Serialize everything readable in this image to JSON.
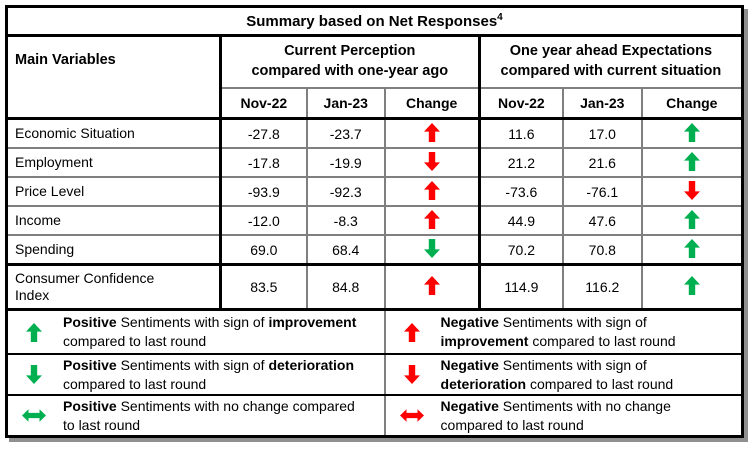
{
  "title": {
    "text": "Summary based on Net Responses",
    "superscript": "4"
  },
  "headers": {
    "main_variables": "Main Variables",
    "group1": {
      "line1": "Current Perception",
      "line2": "compared with one-year ago"
    },
    "group2": {
      "line1": "One year ahead Expectations",
      "line2": "compared with current situation"
    },
    "sub": [
      "Nov-22",
      "Jan-23",
      "Change",
      "Nov-22",
      "Jan-23",
      "Change"
    ]
  },
  "rows": [
    {
      "name": "Economic Situation",
      "cp_nov": "-27.8",
      "cp_jan": "-23.7",
      "cp_change": {
        "dir": "up",
        "color": "red"
      },
      "oy_nov": "11.6",
      "oy_jan": "17.0",
      "oy_change": {
        "dir": "up",
        "color": "green"
      }
    },
    {
      "name": "Employment",
      "cp_nov": "-17.8",
      "cp_jan": "-19.9",
      "cp_change": {
        "dir": "down",
        "color": "red"
      },
      "oy_nov": "21.2",
      "oy_jan": "21.6",
      "oy_change": {
        "dir": "up",
        "color": "green"
      }
    },
    {
      "name": "Price Level",
      "cp_nov": "-93.9",
      "cp_jan": "-92.3",
      "cp_change": {
        "dir": "up",
        "color": "red"
      },
      "oy_nov": "-73.6",
      "oy_jan": "-76.1",
      "oy_change": {
        "dir": "down",
        "color": "red"
      }
    },
    {
      "name": "Income",
      "cp_nov": "-12.0",
      "cp_jan": "-8.3",
      "cp_change": {
        "dir": "up",
        "color": "red"
      },
      "oy_nov": "44.9",
      "oy_jan": "47.6",
      "oy_change": {
        "dir": "up",
        "color": "green"
      }
    },
    {
      "name": "Spending",
      "cp_nov": "69.0",
      "cp_jan": "68.4",
      "cp_change": {
        "dir": "down",
        "color": "green"
      },
      "oy_nov": "70.2",
      "oy_jan": "70.8",
      "oy_change": {
        "dir": "up",
        "color": "green"
      }
    },
    {
      "name": "Consumer Confidence Index",
      "cp_nov": "83.5",
      "cp_jan": "84.8",
      "cp_change": {
        "dir": "up",
        "color": "red"
      },
      "oy_nov": "114.9",
      "oy_jan": "116.2",
      "oy_change": {
        "dir": "up",
        "color": "green"
      }
    }
  ],
  "legend": {
    "rows": [
      {
        "left": {
          "arrow": {
            "dir": "up",
            "color": "green"
          },
          "seg1": "Positive",
          "seg2": " Sentiments with sign of ",
          "seg3": "improvement",
          "seg4": " compared to last round"
        },
        "right": {
          "arrow": {
            "dir": "up",
            "color": "red"
          },
          "seg1": "Negative",
          "seg2": " Sentiments with sign of ",
          "seg3": "improvement",
          "seg4": " compared to last round"
        }
      },
      {
        "left": {
          "arrow": {
            "dir": "down",
            "color": "green"
          },
          "seg1": "Positive",
          "seg2": " Sentiments with sign of ",
          "seg3": "deterioration",
          "seg4": " compared to last round"
        },
        "right": {
          "arrow": {
            "dir": "down",
            "color": "red"
          },
          "seg1": "Negative",
          "seg2": " Sentiments with sign of ",
          "seg3": "deterioration",
          "seg4": " compared to last round"
        }
      },
      {
        "left": {
          "arrow": {
            "dir": "lr",
            "color": "green"
          },
          "seg1": "Positive",
          "seg2": " Sentiments with no change compared to last round"
        },
        "right": {
          "arrow": {
            "dir": "lr",
            "color": "red"
          },
          "seg1": "Negative",
          "seg2": " Sentiments with no change compared to last round"
        }
      }
    ]
  },
  "colors": {
    "red": "#ff0000",
    "green": "#00b050"
  }
}
